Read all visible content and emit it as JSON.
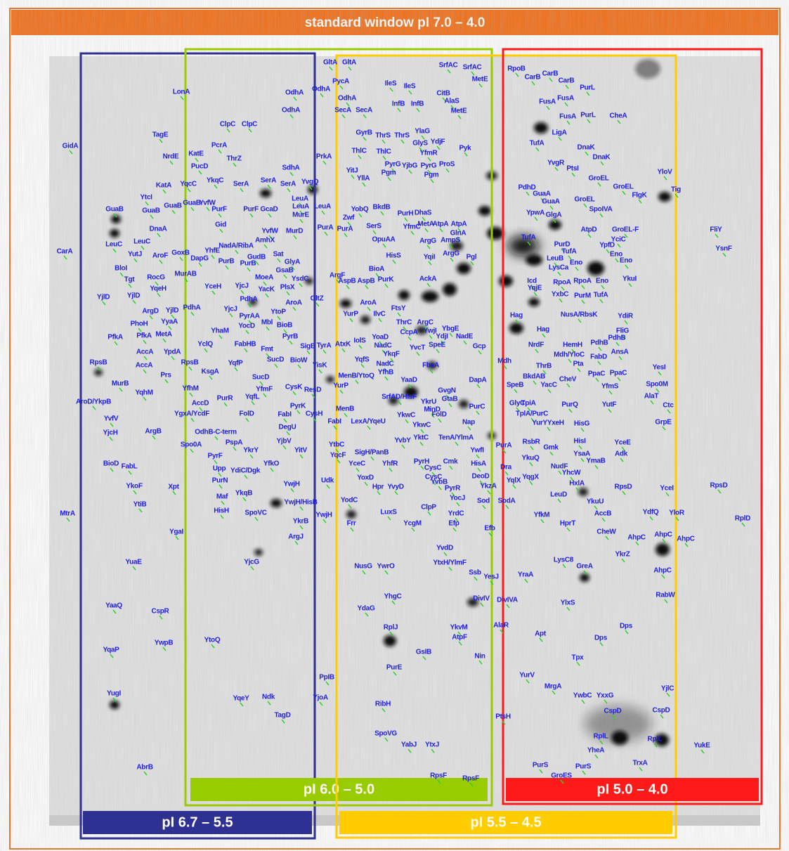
{
  "header": {
    "title": "standard window pI 7.0 – 4.0"
  },
  "windows": [
    {
      "label": "pI 6.7 – 5.5",
      "color": "#2e3192"
    },
    {
      "label": "pI 6.0 – 5.0",
      "color": "#99cc00"
    },
    {
      "label": "pI 5.5 – 4.5",
      "color": "#ffcc00"
    },
    {
      "label": "pI 5.0 – 4.0",
      "color": "#ff1a1a"
    }
  ],
  "spot_labels": [
    [
      "GltA",
      "GltA",
      "SrfAC",
      "SrfAC",
      "RpoB"
    ],
    [
      "PycA",
      "IleS",
      "IleS",
      "MetE",
      "CarB",
      "CarB",
      "CarB",
      "PurL"
    ],
    [
      "LonA",
      "OdhA",
      "OdhA",
      "OdhA",
      "CitB",
      "InfB",
      "InfB",
      "AlaS",
      "FusA",
      "FusA"
    ],
    [
      "OdhA",
      "SecA",
      "SecA",
      "MetE",
      "FusA",
      "PurL",
      "CheA"
    ],
    [
      "ClpC",
      "ClpC",
      "GyrB",
      "ThrS",
      "ThrS",
      "YlaG",
      "LigA"
    ],
    [
      "TagE",
      "GidA",
      "PcrA",
      "GlyS",
      "YdjF",
      "TufA",
      "DnaK",
      "DnaK"
    ],
    [
      "NrdE",
      "KatE",
      "ThrZ",
      "ThlC",
      "ThlC",
      "YfmR",
      "Pyk",
      "YvgR",
      "PtsI"
    ],
    [
      "PucD",
      "SdhA",
      "PrkA",
      "PyrG",
      "YjbG",
      "PyrG",
      "ProS",
      "GroEL",
      "GroEL",
      "YloV"
    ],
    [
      "KatA",
      "YqcC",
      "YkqC",
      "SerA",
      "SerA",
      "SerA",
      "YvgQ",
      "YitJ",
      "YllA",
      "Pgm",
      "Pgm",
      "PdhD",
      "GuaA",
      "Tig",
      "FlgK",
      "GroEL"
    ],
    [
      "YtcI",
      "GuaB",
      "GuaB",
      "YvfW",
      "LeuA",
      "LeuA",
      "LeuA",
      "YobQ",
      "BkdB",
      "PurH",
      "DhaS",
      "GuaA",
      "SpoIVA"
    ],
    [
      "GuaB",
      "GuaB",
      "PurF",
      "PurF",
      "GcaD",
      "MurE",
      "Zwf",
      "AtpA",
      "AtpA",
      "YpwA",
      "GlgA",
      "AtpD"
    ],
    [
      "DnaA",
      "Gid",
      "YvfW",
      "MurD",
      "PurA",
      "PurA",
      "SerS",
      "YfmC",
      "MetA",
      "FliY",
      "GroEL-F",
      "YciC"
    ],
    [
      "CarA",
      "LeuC",
      "LeuC",
      "AmhX",
      "NadA/RibA",
      "GlnA",
      "AmpS",
      "ArgG",
      "OpuAA",
      "TufA",
      "PurD",
      "TufA",
      "YpfD",
      "Eno",
      "Eno",
      "YsnF"
    ],
    [
      "YutJ",
      "AroF",
      "GoxB",
      "YhfE",
      "DapG",
      "Sat",
      "GudB",
      "GlyA",
      "HisS",
      "YqiI",
      "ArgG",
      "LeuB",
      "LysCa"
    ],
    [
      "BloI",
      "PurB",
      "PurB",
      "GsaB",
      "BioA",
      "Pgl",
      "Eno"
    ],
    [
      "Tgt",
      "RocG",
      "MurAB",
      "MoeA",
      "YsdC",
      "ArgF",
      "AspB",
      "AspB",
      "PurK",
      "AckA",
      "Icd",
      "RpoA",
      "RpoA",
      "Eno",
      "YkuI"
    ],
    [
      "YjlD",
      "YjlD",
      "YqeH",
      "YceH",
      "YjcJ",
      "YacK",
      "PlsX",
      "PdhA",
      "YqjE",
      "YxbC",
      "PurM",
      "TufA"
    ],
    [
      "ArgD",
      "YjlD",
      "PdhA",
      "YjcJ",
      "PyrAA",
      "YtoP",
      "AroA",
      "GltZ",
      "YurP",
      "AroA",
      "IlvC",
      "FtsY",
      "ArgC",
      "Hag",
      "NusA/RbsK",
      "YdiR"
    ],
    [
      "PhoH",
      "YyaA",
      "YhaM",
      "YocD",
      "Mbl",
      "BioB",
      "ThrC",
      "YwjI",
      "YbgE",
      "Hag",
      "FliG"
    ],
    [
      "PfkA",
      "PfkA",
      "MetA",
      "YclQ",
      "FabHB",
      "PyrB",
      "IolS",
      "YoaD",
      "CcpA",
      "YdjI",
      "NadE",
      "NrdF",
      "HemH",
      "PdhB",
      "PdhB"
    ],
    [
      "AccA",
      "YpdA",
      "Fmt",
      "SigB",
      "TyrA",
      "AtxK",
      "NadC",
      "YvcT",
      "SpeE",
      "Gcp",
      "AnsA"
    ],
    [
      "RpsB",
      "AccA",
      "RpsB",
      "SucD",
      "BioW",
      "YqfP",
      "YisK",
      "YqfS",
      "NadC",
      "YkqF",
      "FbaA",
      "Mdh",
      "Mdh/YloC",
      "FabD",
      "Pta",
      "ThrB",
      "YesI"
    ],
    [
      "Prs",
      "KsgA",
      "YfhB",
      "DapA",
      "PpaC",
      "PpaC",
      "BkdAB",
      "CheV",
      "Spo0M"
    ],
    [
      "MurB",
      "SucD",
      "MenB/YtoQ",
      "YaaD",
      "SpeB",
      "YacC",
      "YfmS"
    ],
    [
      "YqhM",
      "YfhM",
      "YfmF",
      "CysK",
      "ResD",
      "YurP",
      "GvgN",
      "AlaT"
    ],
    [
      "AroD/YkpB",
      "AccD",
      "PurR",
      "YqfL",
      "YkrU",
      "GtaB",
      "PurQ",
      "YutF",
      "Ctc"
    ],
    [
      "YvfV",
      "PyrK",
      "CysH",
      "MenB",
      "SrfAD/HisF",
      "MinD",
      "PurC",
      "GlyC",
      "TpiA",
      "YgxA/YcdF",
      "FolD",
      "FabI"
    ],
    [
      "YjcH",
      "ArgB",
      "DegU",
      "FabI",
      "LexA/YqeU",
      "YkwC",
      "YkwC",
      "FolD",
      "Nap",
      "TplA/PurC",
      "YurYYxeH",
      "HisG",
      "GrpE"
    ],
    [
      "OdhB-C-term",
      "PspA",
      "YjbV",
      "YitV",
      "YvbY",
      "YktC",
      "TenA/YlmA",
      "YwfI",
      "PurA",
      "RsbR",
      "Gmk",
      "HisI",
      "YceE",
      "YsaA",
      "Adk"
    ],
    [
      "Spo0A",
      "PyrF",
      "YkrY",
      "YtbC",
      "SigH/PanB",
      "YkuQ",
      "YmaB"
    ],
    [
      "BioD",
      "FabL",
      "YqcF",
      "Upp",
      "YdiC/Dgk",
      "YfkO",
      "YceC",
      "YhfR",
      "PyrH",
      "Cmk",
      "HisA",
      "Dra",
      "NudF"
    ],
    [
      "PurN",
      "CysC",
      "CysC",
      "YqgX",
      "YhcW"
    ],
    [
      "YkoF",
      "Xpt",
      "YoxD",
      "YvbB",
      "DeoD",
      "YqlX",
      "HxlA",
      "RpsD",
      "RpsD",
      "YceI"
    ],
    [
      "YwjH",
      "Hpr",
      "YvyD",
      "PyrR",
      "YkzA",
      "Maf",
      "YkqB",
      "Udk",
      "LeuD"
    ],
    [
      "YtiB",
      "YwjH/HisB",
      "YodC",
      "Sod",
      "SodA",
      "YkuU"
    ],
    [
      "MtrA",
      "HisH",
      "SpoVC",
      "LuxS",
      "ClpP",
      "YocJ",
      "YrdC",
      "YfkM",
      "AccB",
      "YdfQ",
      "YloR",
      "RplD"
    ],
    [
      "YkrB",
      "YwjH",
      "Frr",
      "YcgM",
      "Efp",
      "Efb",
      "HprT"
    ],
    [
      "YgaI",
      "ArgJ",
      "CheW",
      "AhpC",
      "AhpC",
      "AhpC"
    ],
    [
      "YvdD",
      "YkrZ",
      "LysC8",
      "GreA"
    ],
    [
      "YuaE",
      "YjcG",
      "NusG",
      "YwrO",
      "YtxH/YlmF",
      "AhpC",
      "Ssb",
      "YesJ",
      "YraA"
    ],
    [
      "YhgC",
      "DivIV",
      "DivIVA",
      "RabW"
    ],
    [
      "YaaQ",
      "YdaG",
      "YlxS",
      "CspR"
    ],
    [
      "YwpB",
      "YtoQ",
      "RplJ",
      "YkvM",
      "AtpF",
      "AlaR",
      "Apt",
      "Dps",
      "Dps"
    ],
    [
      "YqaP",
      "GsIB",
      "Nin",
      "Tpx"
    ],
    [
      "PurE",
      "YurV",
      "PpIB",
      "MrgA",
      "YwbC",
      "YxxG",
      "YjlC"
    ],
    [
      "YugI",
      "YqeY",
      "Ndk",
      "YjoA",
      "RibH",
      "CspD",
      "CspD"
    ],
    [
      "TagD",
      "PtsH",
      "SpoVG",
      "RplL",
      "RplL",
      "YukE"
    ],
    [
      "YabJ",
      "YtxJ",
      "YheA",
      "TrxA",
      "AbrB",
      "PurS",
      "PurS",
      "GroES",
      "RpsF",
      "RpsF"
    ]
  ]
}
